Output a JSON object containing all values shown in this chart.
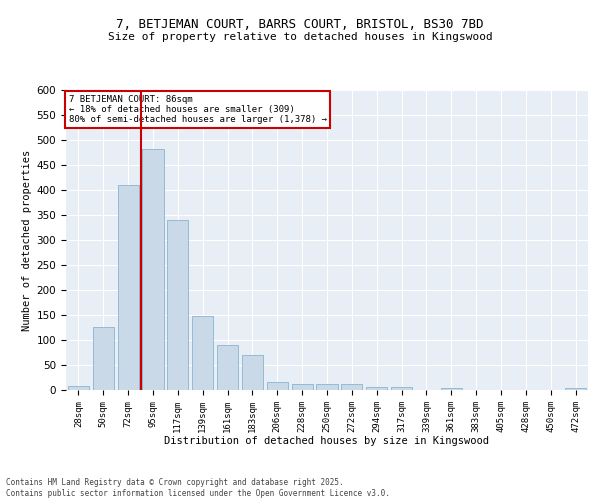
{
  "title_line1": "7, BETJEMAN COURT, BARRS COURT, BRISTOL, BS30 7BD",
  "title_line2": "Size of property relative to detached houses in Kingswood",
  "xlabel": "Distribution of detached houses by size in Kingswood",
  "ylabel": "Number of detached properties",
  "bar_color": "#c9d9e8",
  "bar_edge_color": "#7aaac8",
  "background_color": "#e8eef5",
  "categories": [
    "28sqm",
    "50sqm",
    "72sqm",
    "95sqm",
    "117sqm",
    "139sqm",
    "161sqm",
    "183sqm",
    "206sqm",
    "228sqm",
    "250sqm",
    "272sqm",
    "294sqm",
    "317sqm",
    "339sqm",
    "361sqm",
    "383sqm",
    "405sqm",
    "428sqm",
    "450sqm",
    "472sqm"
  ],
  "values": [
    8,
    127,
    410,
    483,
    340,
    148,
    90,
    70,
    16,
    12,
    13,
    13,
    7,
    6,
    0,
    4,
    0,
    0,
    0,
    0,
    4
  ],
  "ylim": [
    0,
    600
  ],
  "yticks": [
    0,
    50,
    100,
    150,
    200,
    250,
    300,
    350,
    400,
    450,
    500,
    550,
    600
  ],
  "vline_x": 2.5,
  "vline_color": "#cc0000",
  "annotation_title": "7 BETJEMAN COURT: 86sqm",
  "annotation_line1": "← 18% of detached houses are smaller (309)",
  "annotation_line2": "80% of semi-detached houses are larger (1,378) →",
  "annotation_box_color": "#cc0000",
  "footer_line1": "Contains HM Land Registry data © Crown copyright and database right 2025.",
  "footer_line2": "Contains public sector information licensed under the Open Government Licence v3.0."
}
